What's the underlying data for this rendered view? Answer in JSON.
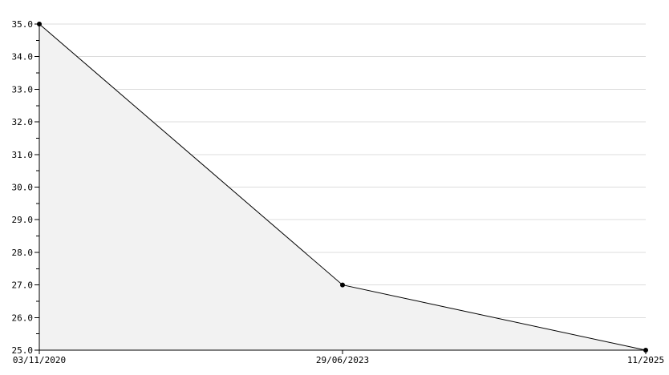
{
  "chart_data": {
    "type": "area",
    "title": "",
    "xlabel": "",
    "ylabel": "",
    "categories": [
      "03/11/2020",
      "29/06/2023",
      "11/2025"
    ],
    "values": [
      35.0,
      27.0,
      25.0
    ],
    "x_tick_labels": [
      "03/11/2020",
      "29/06/2023",
      "11/2025"
    ],
    "y_tick_labels": [
      "25.0",
      "26.0",
      "27.0",
      "28.0",
      "29.0",
      "30.0",
      "31.0",
      "32.0",
      "33.0",
      "34.0",
      "35.0"
    ],
    "y_ticks": [
      25,
      26,
      27,
      28,
      29,
      30,
      31,
      32,
      33,
      34,
      35
    ],
    "y_minor_tick_step": 0.5,
    "ylim": [
      25.0,
      35.0
    ],
    "grid": true,
    "legend": null,
    "colors": {
      "background": "#ffffff",
      "area_fill": "#f2f2f2",
      "gridline": "#dcdcdc",
      "axis": "#000000",
      "line": "#000000",
      "marker": "#000000",
      "text": "#000000"
    }
  }
}
